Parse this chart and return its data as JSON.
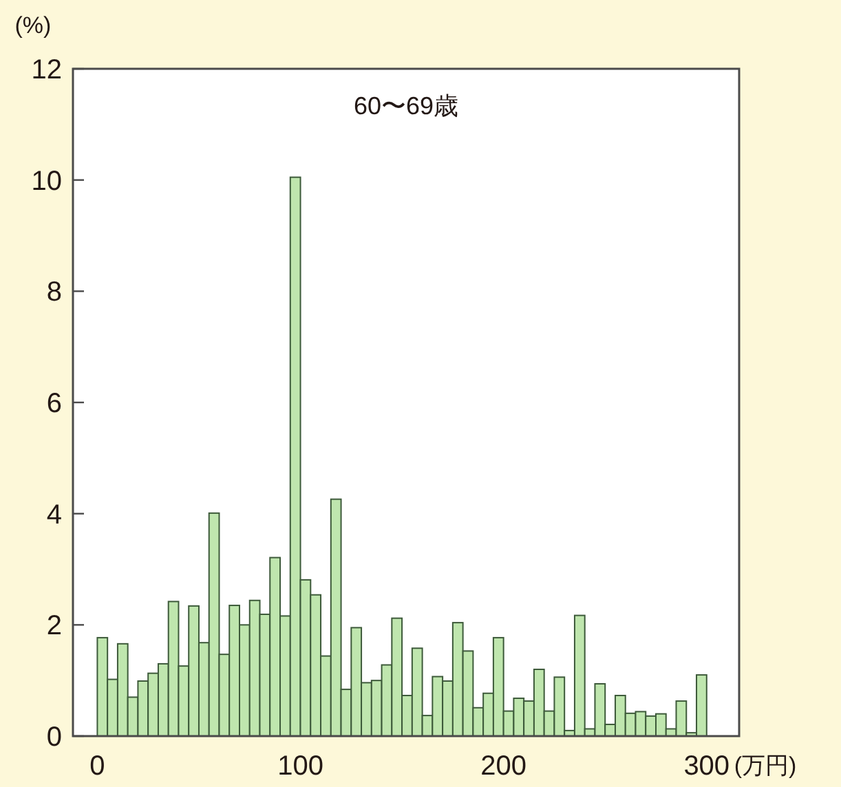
{
  "chart_data": {
    "type": "histogram",
    "title": "60〜69歳",
    "xlabel": "(万円)",
    "ylabel": "(%)",
    "bins": [
      0,
      5,
      10,
      15,
      20,
      25,
      30,
      35,
      40,
      45,
      50,
      55,
      60,
      65,
      70,
      75,
      80,
      85,
      90,
      95,
      100,
      105,
      110,
      115,
      120,
      125,
      130,
      135,
      140,
      145,
      150,
      155,
      160,
      165,
      170,
      175,
      180,
      185,
      190,
      195,
      200,
      205,
      210,
      215,
      220,
      225,
      230,
      235,
      240,
      245,
      250,
      255,
      260,
      265,
      270,
      275,
      280,
      285,
      290,
      295,
      300
    ],
    "values": [
      1.77,
      1.02,
      1.66,
      0.7,
      0.99,
      1.13,
      1.3,
      2.42,
      1.26,
      2.34,
      1.68,
      4.01,
      1.47,
      2.35,
      2.0,
      2.44,
      2.19,
      3.21,
      2.16,
      10.05,
      2.81,
      2.54,
      1.44,
      4.26,
      0.84,
      1.95,
      0.96,
      1.0,
      1.28,
      2.12,
      0.73,
      1.58,
      0.37,
      1.07,
      0.99,
      2.04,
      1.53,
      0.51,
      0.77,
      1.77,
      0.45,
      0.68,
      0.63,
      1.2,
      0.45,
      1.06,
      0.1,
      2.17,
      0.13,
      0.94,
      0.21,
      0.73,
      0.41,
      0.44,
      0.36,
      0.4,
      0.13,
      0.63,
      0.06,
      1.1
    ],
    "color": "#bfe6ae",
    "xlim": [
      -12,
      316
    ],
    "xticks": [
      0,
      100,
      200,
      300
    ],
    "ylim": [
      0,
      12
    ],
    "yticks": [
      0,
      2,
      4,
      6,
      8,
      10,
      12
    ],
    "grid": false
  }
}
